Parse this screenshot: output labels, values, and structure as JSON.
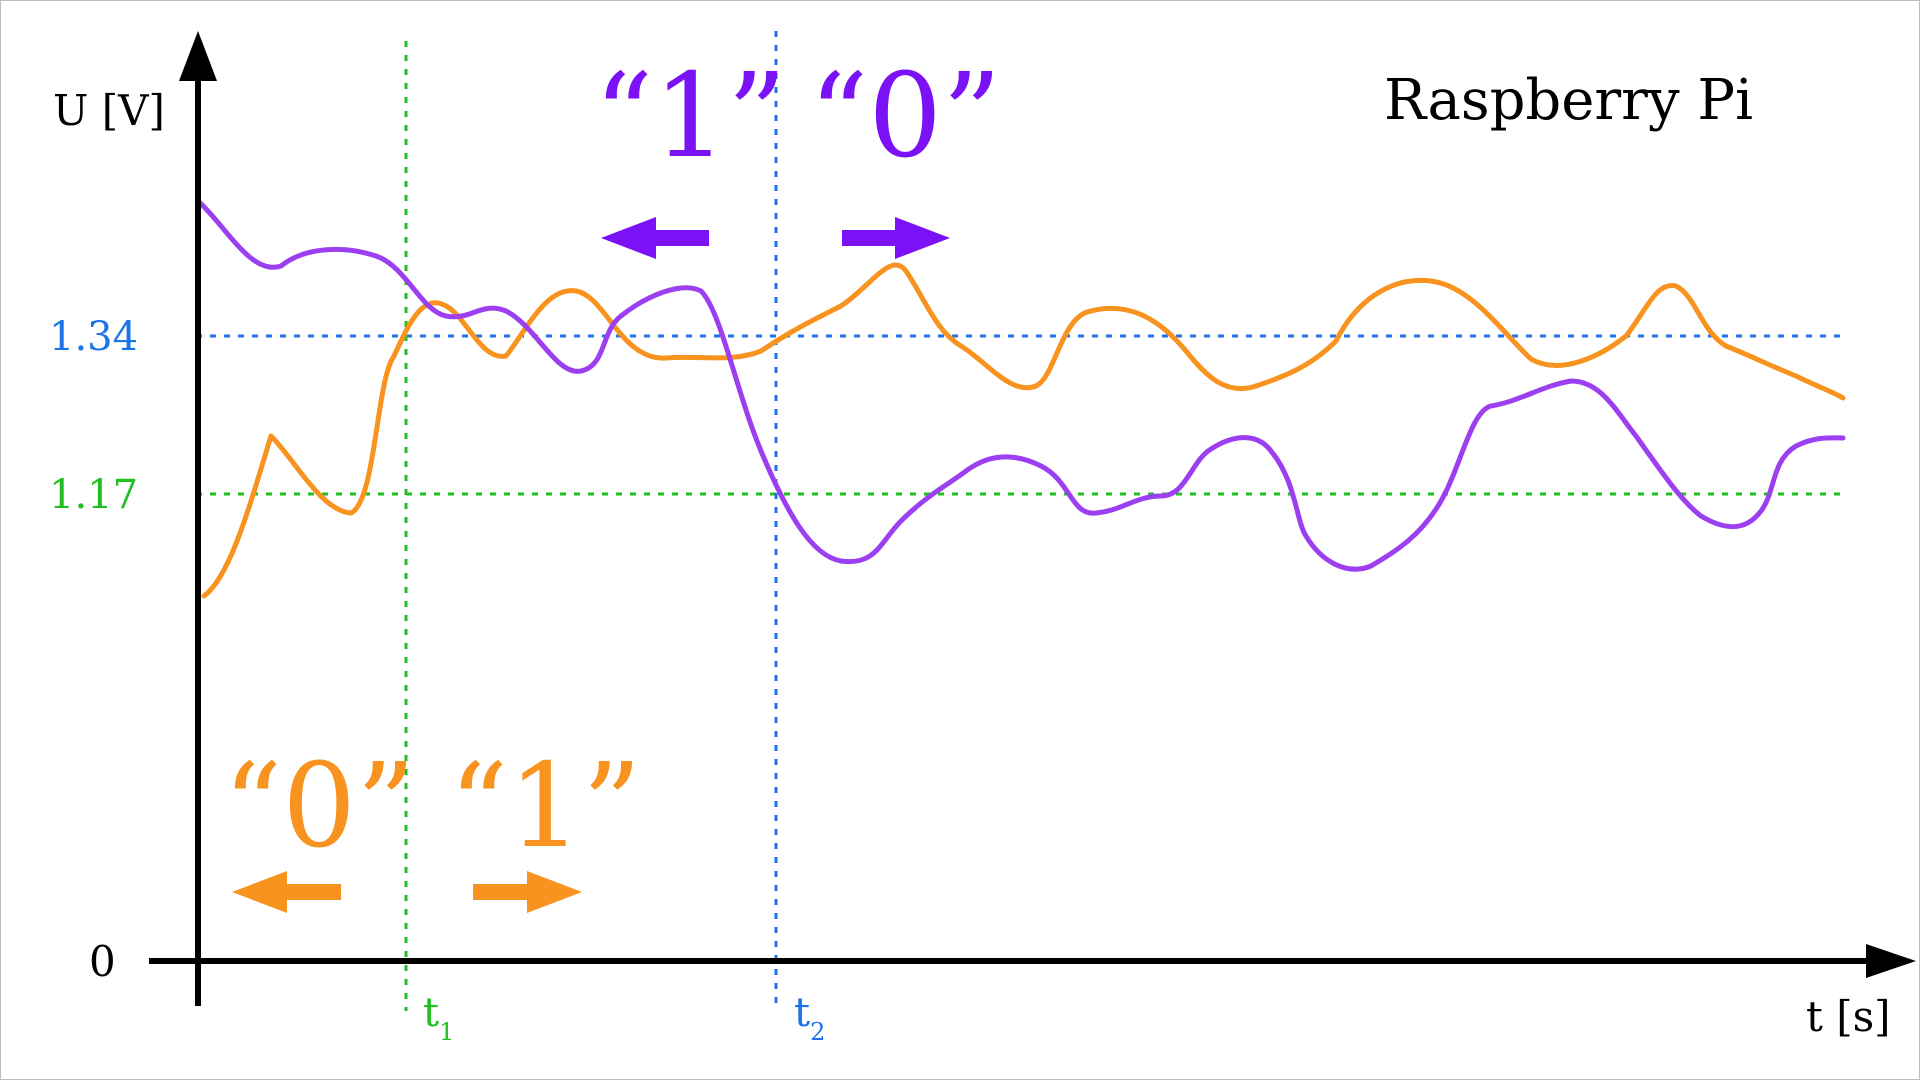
{
  "title": "Raspberry Pi",
  "axes": {
    "y_label": "U [V]",
    "x_label": "t [s]",
    "origin_label": "0"
  },
  "thresholds": {
    "high": {
      "label": "1.34",
      "value": 1.34,
      "color": "#1a73e8"
    },
    "low": {
      "label": "1.17",
      "value": 1.17,
      "color": "#21c021"
    }
  },
  "time_markers": [
    {
      "label": "t",
      "sub": "1",
      "color": "#21c021"
    },
    {
      "label": "t",
      "sub": "2",
      "color": "#1a73e8"
    }
  ],
  "orange_states": {
    "color": "#f7931e",
    "before": "“0”",
    "after": "“1”"
  },
  "purple_states": {
    "color": "#7a12f5",
    "before": "“1”",
    "after": "“0”"
  },
  "signals": {
    "orange_color": "#f7931e",
    "purple_color": "#9b3ff0"
  }
}
